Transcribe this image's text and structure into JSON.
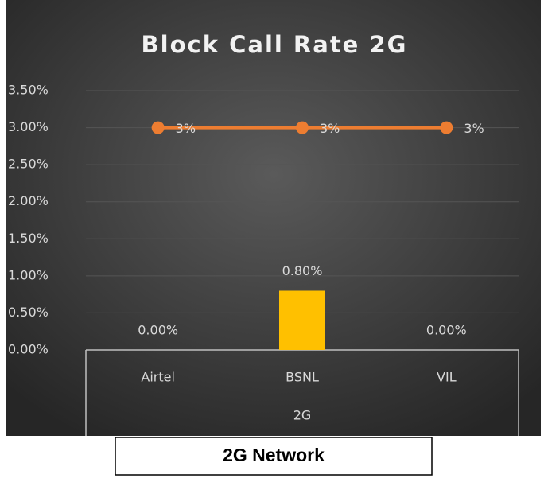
{
  "chart_data": {
    "type": "combo",
    "title": "Block Call Rate 2G",
    "categories": [
      "Airtel",
      "BSNL",
      "VIL"
    ],
    "group_label": "2G",
    "series": [
      {
        "type": "bar",
        "color": "#ffc000",
        "values": [
          0,
          0.8,
          0
        ],
        "value_labels": [
          "0.00%",
          "0.80%",
          "0.00%"
        ]
      },
      {
        "type": "line",
        "color": "#ed7d31",
        "values": [
          3,
          3,
          3
        ],
        "value_labels": [
          "3%",
          "3%",
          "3%"
        ]
      }
    ],
    "ylim": [
      0,
      3.5
    ],
    "yticks": [
      {
        "value": 0,
        "label": "0.00%"
      },
      {
        "value": 0.5,
        "label": "0.50%"
      },
      {
        "value": 1,
        "label": "1.00%"
      },
      {
        "value": 1.5,
        "label": "1.50%"
      },
      {
        "value": 2,
        "label": "2.00%"
      },
      {
        "value": 2.5,
        "label": "2.50%"
      },
      {
        "value": 3,
        "label": "3.00%"
      },
      {
        "value": 3.5,
        "label": "3.50%"
      }
    ],
    "grid": true
  },
  "caption": "2G Network"
}
